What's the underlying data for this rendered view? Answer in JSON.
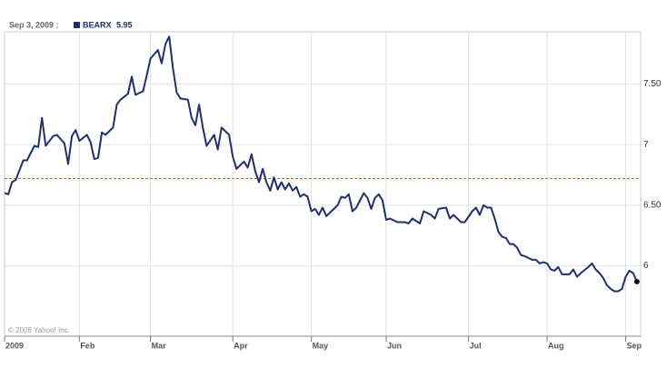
{
  "chart_data": {
    "type": "line",
    "header_date": "Sep 3, 2009 :",
    "header_value": "5.95",
    "copyright": "© 2008 Yahoo! Inc.",
    "series": [
      {
        "name": "BEARX",
        "color": "#1f2f73",
        "x": [
          0,
          1,
          2,
          3,
          5,
          6,
          8,
          9,
          10,
          11,
          13,
          14,
          16,
          17,
          18,
          19,
          20,
          22,
          23,
          24,
          25,
          26,
          27,
          29,
          30,
          31,
          33,
          34,
          35,
          37,
          38,
          39,
          41,
          42,
          43,
          44,
          45,
          46,
          47,
          49,
          50,
          51,
          52,
          53,
          54,
          56,
          57,
          58,
          59,
          60,
          61,
          62,
          63,
          64,
          65,
          66,
          67,
          68,
          69,
          70,
          71,
          72,
          73,
          74,
          75,
          76,
          77,
          78,
          79,
          80,
          81,
          82,
          83,
          84,
          85,
          86,
          88,
          89,
          90,
          91,
          92,
          93,
          94,
          95,
          96,
          97,
          98,
          99,
          100,
          101,
          102,
          103,
          105,
          107,
          108,
          109,
          111,
          112,
          114,
          115,
          116,
          118,
          119,
          120,
          122,
          123,
          125,
          126,
          127,
          128,
          129,
          130,
          131,
          132,
          133,
          134,
          135,
          136,
          137,
          138,
          139,
          141,
          142,
          143,
          144,
          145,
          146,
          147,
          148,
          149,
          151,
          152,
          153,
          154,
          156,
          157,
          158,
          159,
          160,
          161,
          162,
          163,
          164,
          165,
          166,
          167,
          168,
          169
        ],
        "values": [
          6.6,
          6.59,
          6.69,
          6.71,
          6.87,
          6.87,
          6.99,
          6.98,
          7.22,
          6.99,
          7.07,
          7.08,
          7.01,
          6.84,
          7.07,
          7.12,
          7.03,
          7.08,
          7.02,
          6.88,
          6.89,
          7.1,
          7.08,
          7.14,
          7.33,
          7.37,
          7.42,
          7.56,
          7.41,
          7.44,
          7.57,
          7.71,
          7.78,
          7.67,
          7.83,
          7.89,
          7.63,
          7.43,
          7.38,
          7.37,
          7.22,
          7.16,
          7.33,
          7.14,
          6.99,
          7.08,
          6.96,
          7.14,
          7.11,
          7.08,
          6.9,
          6.8,
          6.83,
          6.86,
          6.81,
          6.92,
          6.78,
          6.69,
          6.8,
          6.69,
          6.62,
          6.73,
          6.63,
          6.69,
          6.63,
          6.68,
          6.62,
          6.65,
          6.57,
          6.59,
          6.57,
          6.45,
          6.47,
          6.42,
          6.48,
          6.41,
          6.47,
          6.5,
          6.57,
          6.56,
          6.59,
          6.45,
          6.48,
          6.54,
          6.6,
          6.56,
          6.47,
          6.56,
          6.59,
          6.54,
          6.38,
          6.39,
          6.36,
          6.36,
          6.35,
          6.39,
          6.35,
          6.45,
          6.42,
          6.39,
          6.47,
          6.48,
          6.39,
          6.42,
          6.36,
          6.36,
          6.45,
          6.48,
          6.42,
          6.5,
          6.48,
          6.48,
          6.39,
          6.28,
          6.24,
          6.23,
          6.18,
          6.18,
          6.15,
          6.09,
          6.08,
          6.05,
          6.05,
          6.02,
          6.03,
          6.02,
          5.97,
          5.96,
          5.99,
          5.93,
          5.93,
          5.97,
          5.91,
          5.94,
          5.99,
          6.02,
          5.97,
          5.94,
          5.9,
          5.84,
          5.81,
          5.79,
          5.79,
          5.81,
          5.91,
          5.96,
          5.94,
          5.87
        ]
      }
    ],
    "reference_line": {
      "value": 6.72,
      "color": "#c8641e"
    },
    "xlim": [
      0,
      170
    ],
    "xticks": [
      {
        "value": 0,
        "label": "2009"
      },
      {
        "value": 20,
        "label": "Feb"
      },
      {
        "value": 39,
        "label": "Mar"
      },
      {
        "value": 61,
        "label": "Apr"
      },
      {
        "value": 82,
        "label": "May"
      },
      {
        "value": 102,
        "label": "Jun"
      },
      {
        "value": 124,
        "label": "Jul"
      },
      {
        "value": 145,
        "label": "Aug"
      },
      {
        "value": 166,
        "label": "Sep"
      }
    ],
    "ylim": [
      5.42,
      7.93
    ],
    "yticks": [
      6,
      {
        "value": 6.5,
        "label": "6.50"
      },
      7,
      {
        "value": 7.5,
        "label": "7.50"
      }
    ],
    "grid": true
  }
}
